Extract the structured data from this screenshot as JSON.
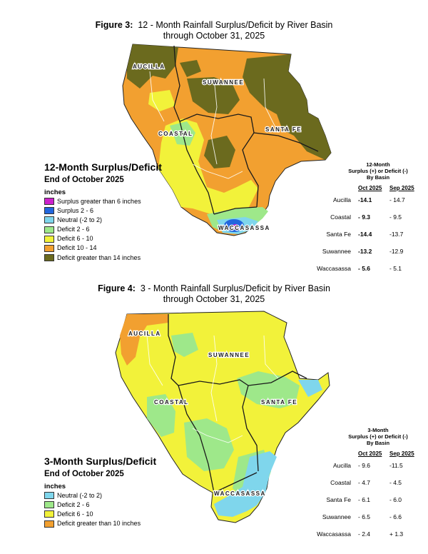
{
  "figure3": {
    "title_prefix": "Figure 3:",
    "title_rest": "12 - Month Rainfall Surplus/Deficit by River Basin",
    "subtitle": "through October 31, 2025",
    "basin_labels": {
      "aucilla": "AUCILLA",
      "suwannee": "SUWANNEE",
      "coastal": "COASTAL",
      "santa_fe": "SANTA FE",
      "waccasassa": "WACCASASSA"
    },
    "legend": {
      "title": "12-Month Surplus/Deficit",
      "subtitle": "End of October 2025",
      "units": "inches",
      "items": [
        {
          "label": "Surplus greater than 6 inches",
          "color": "#cc22cc"
        },
        {
          "label": "Surplus 2 - 6",
          "color": "#2266dd"
        },
        {
          "label": "Neutral (-2 to 2)",
          "color": "#7fd6ec"
        },
        {
          "label": "Deficit 2 - 6",
          "color": "#9ee88a"
        },
        {
          "label": "Deficit 6 - 10",
          "color": "#f2f23a"
        },
        {
          "label": "Deficit 10 - 14",
          "color": "#f2a030"
        },
        {
          "label": "Deficit greater than 14 inches",
          "color": "#6b6a1e"
        }
      ]
    },
    "table": {
      "heading_line1": "12-Month",
      "heading_line2": "Surplus (+) or Deficit (-)",
      "heading_line3": "By Basin",
      "col_oct": "Oct 2025",
      "col_sep": "Sep 2025",
      "rows": [
        {
          "basin": "Aucilla",
          "oct": "-14.1",
          "sep": "- 14.7"
        },
        {
          "basin": "Coastal",
          "oct": "- 9.3",
          "sep": "- 9.5"
        },
        {
          "basin": "Santa Fe",
          "oct": "-14.4",
          "sep": "-13.7"
        },
        {
          "basin": "Suwannee",
          "oct": "-13.2",
          "sep": "-12.9"
        },
        {
          "basin": "Waccasassa",
          "oct": "- 5.6",
          "sep": "- 5.1"
        }
      ]
    }
  },
  "figure4": {
    "title_prefix": "Figure 4:",
    "title_rest": "3 - Month Rainfall Surplus/Deficit by River Basin",
    "subtitle": "through October 31, 2025",
    "basin_labels": {
      "aucilla": "AUCILLA",
      "suwannee": "SUWANNEE",
      "coastal": "COASTAL",
      "santa_fe": "SANTA FE",
      "waccasassa": "WACCASASSA"
    },
    "legend": {
      "title": "3-Month Surplus/Deficit",
      "subtitle": "End of October 2025",
      "units": "inches",
      "items": [
        {
          "label": "Neutral (-2 to 2)",
          "color": "#7fd6ec"
        },
        {
          "label": "Deficit 2 - 6",
          "color": "#9ee88a"
        },
        {
          "label": "Deficit 6 - 10",
          "color": "#f2f23a"
        },
        {
          "label": "Deficit greater than 10 inches",
          "color": "#f2a030"
        }
      ]
    },
    "table": {
      "heading_line1": "3-Month",
      "heading_line2": "Surplus (+) or Deficit (-)",
      "heading_line3": "By Basin",
      "col_oct": "Oct 2025",
      "col_sep": "Sep 2025",
      "rows": [
        {
          "basin": "Aucilla",
          "oct": "- 9.6",
          "sep": "-11.5"
        },
        {
          "basin": "Coastal",
          "oct": "- 4.7",
          "sep": "- 4.5"
        },
        {
          "basin": "Santa Fe",
          "oct": "- 6.1",
          "sep": "- 6.0"
        },
        {
          "basin": "Suwannee",
          "oct": "- 6.5",
          "sep": "- 6.6"
        },
        {
          "basin": "Waccasassa",
          "oct": "- 2.4",
          "sep": "+ 1.3"
        }
      ]
    }
  }
}
